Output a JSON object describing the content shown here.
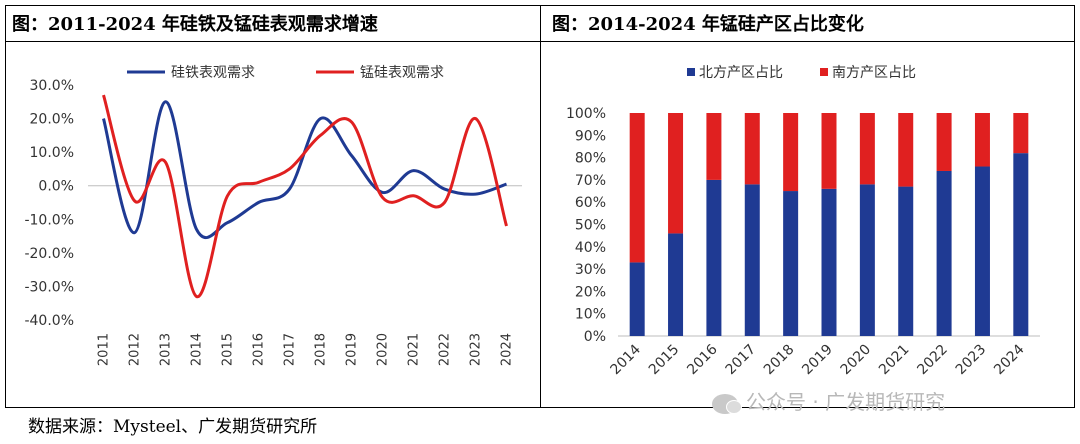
{
  "panel_left": {
    "title": "图：2011-2024 年硅铁及锰硅表观需求增速"
  },
  "panel_right": {
    "title": "图：2014-2024 年锰硅产区占比变化"
  },
  "source": "数据来源：Mysteel、广发期货研究所",
  "watermark": "公众号 · 广发期货研究",
  "chart_data": [
    {
      "type": "line",
      "title": "图：2011-2024 年硅铁及锰硅表观需求增速",
      "x": [
        "2011",
        "2012",
        "2013",
        "2014",
        "2015",
        "2016",
        "2017",
        "2018",
        "2019",
        "2020",
        "2021",
        "2022",
        "2023",
        "2024"
      ],
      "ylim": [
        -40,
        30
      ],
      "yticks": [
        "30.0%",
        "20.0%",
        "10.0%",
        "0.0%",
        "-10.0%",
        "-20.0%",
        "-30.0%",
        "-40.0%"
      ],
      "ytick_values": [
        30,
        20,
        10,
        0,
        -10,
        -20,
        -30,
        -40
      ],
      "legend_position": "top",
      "series": [
        {
          "name": "硅铁表观需求",
          "color": "#1f3a93",
          "values": [
            20.0,
            -14.0,
            25.0,
            -13.0,
            -11.0,
            -5.0,
            -1.0,
            20.0,
            9.0,
            -2.0,
            4.5,
            -1.0,
            -2.5,
            0.5
          ]
        },
        {
          "name": "锰硅表观需求",
          "color": "#e02020",
          "values": [
            27.0,
            -4.5,
            7.0,
            -33.0,
            -3.0,
            1.0,
            5.0,
            15.0,
            19.0,
            -3.5,
            -3.0,
            -5.0,
            20.0,
            -12.0
          ]
        }
      ]
    },
    {
      "type": "bar",
      "stacked": true,
      "title": "图：2014-2024 年锰硅产区占比变化",
      "categories": [
        "2014",
        "2015",
        "2016",
        "2017",
        "2018",
        "2019",
        "2020",
        "2021",
        "2022",
        "2023",
        "2024"
      ],
      "ylim": [
        0,
        100
      ],
      "yticks": [
        "100%",
        "90%",
        "80%",
        "70%",
        "60%",
        "50%",
        "40%",
        "30%",
        "20%",
        "10%",
        "0%"
      ],
      "ytick_values": [
        100,
        90,
        80,
        70,
        60,
        50,
        40,
        30,
        20,
        10,
        0
      ],
      "legend_position": "top",
      "series": [
        {
          "name": "北方产区占比",
          "color": "#1f3a93",
          "values": [
            33,
            46,
            70,
            68,
            65,
            66,
            68,
            67,
            74,
            76,
            82
          ]
        },
        {
          "name": "南方产区占比",
          "color": "#e02020",
          "values": [
            67,
            54,
            30,
            32,
            35,
            34,
            32,
            33,
            26,
            24,
            18
          ]
        }
      ]
    }
  ]
}
